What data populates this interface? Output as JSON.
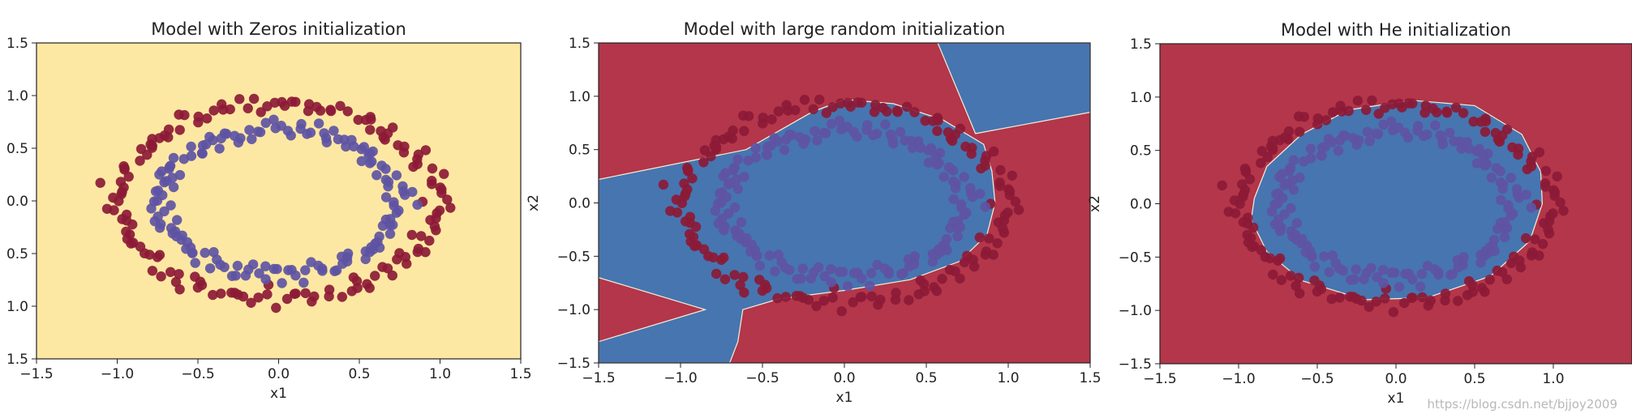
{
  "watermark": "https://blog.csdn.net/bjjoy2009",
  "colors": {
    "red_region": "#b3364a",
    "blue_region": "#4775b0",
    "yellow_region": "#fde8a3",
    "red_point": "#8c1a36",
    "blue_point": "#5e54a3"
  },
  "chart_data": [
    {
      "type": "scatter",
      "title": "Model with Zeros initialization",
      "xlabel": "x1",
      "ylabel": "",
      "xlim": [
        -1.5,
        1.5
      ],
      "ylim": [
        -1.5,
        1.5
      ],
      "xticks": [
        "−1.5",
        "−1.0",
        "−0.5",
        "0.0",
        "0.5",
        "1.0",
        "1.5"
      ],
      "yticks": [
        "1.5",
        "1.0",
        "0.5",
        "0.0",
        "0.5",
        "1.0",
        "1.5"
      ],
      "grid": false,
      "background": "yellow_region",
      "series": [
        {
          "color": "red_point",
          "shape": "circle",
          "radius": 1.0
        },
        {
          "color": "blue_point",
          "shape": "circle",
          "radius": 0.75
        }
      ]
    },
    {
      "type": "scatter",
      "title": "Model with large random initialization",
      "xlabel": "x1",
      "ylabel": "x2",
      "xlim": [
        -1.5,
        1.5
      ],
      "ylim": [
        -1.5,
        1.5
      ],
      "xticks": [
        "−1.5",
        "−1.0",
        "−0.5",
        "0.0",
        "0.5",
        "1.0",
        "1.5"
      ],
      "yticks": [
        "1.5",
        "1.0",
        "0.5",
        "0.0",
        "−0.5",
        "−1.0",
        "−1.5"
      ],
      "grid": false,
      "background": "red_region",
      "decision_regions": [
        {
          "color": "blue_region",
          "polygon": [
            [
              -1.5,
              0.22
            ],
            [
              -0.6,
              0.5
            ],
            [
              -0.2,
              0.85
            ],
            [
              0.0,
              0.97
            ],
            [
              0.3,
              0.93
            ],
            [
              0.6,
              0.78
            ],
            [
              0.85,
              0.55
            ],
            [
              0.9,
              0.3
            ],
            [
              0.92,
              0.0
            ],
            [
              0.87,
              -0.3
            ],
            [
              0.7,
              -0.55
            ],
            [
              0.4,
              -0.72
            ],
            [
              0.0,
              -0.82
            ],
            [
              -0.4,
              -0.9
            ],
            [
              -0.62,
              -1.0
            ],
            [
              -0.65,
              -1.3
            ],
            [
              -0.7,
              -1.5
            ],
            [
              -1.5,
              -1.5
            ],
            [
              -1.5,
              -1.3
            ],
            [
              -0.85,
              -1.0
            ],
            [
              -1.5,
              -0.7
            ]
          ]
        },
        {
          "color": "blue_region",
          "polygon": [
            [
              0.57,
              1.5
            ],
            [
              1.5,
              1.5
            ],
            [
              1.5,
              0.85
            ],
            [
              0.8,
              0.65
            ]
          ]
        }
      ],
      "series": [
        {
          "color": "red_point",
          "shape": "circle",
          "radius": 1.0
        },
        {
          "color": "blue_point",
          "shape": "circle",
          "radius": 0.75
        }
      ]
    },
    {
      "type": "scatter",
      "title": "Model with He initialization",
      "xlabel": "x1",
      "ylabel": "x2",
      "xlim": [
        -1.5,
        1.5
      ],
      "ylim": [
        -1.5,
        1.5
      ],
      "xticks": [
        "−1.5",
        "−1.0",
        "−0.5",
        "0.0",
        "0.5",
        "1.0"
      ],
      "yticks": [
        "1.5",
        "1.0",
        "0.5",
        "0.0",
        "−0.5",
        "−1.0",
        "−1.5"
      ],
      "grid": false,
      "background": "red_region",
      "decision_regions": [
        {
          "color": "blue_region",
          "polygon": [
            [
              -0.9,
              0.05
            ],
            [
              -0.82,
              0.35
            ],
            [
              -0.6,
              0.65
            ],
            [
              -0.3,
              0.88
            ],
            [
              0.1,
              0.97
            ],
            [
              0.5,
              0.92
            ],
            [
              0.8,
              0.65
            ],
            [
              0.92,
              0.3
            ],
            [
              0.93,
              0.0
            ],
            [
              0.85,
              -0.35
            ],
            [
              0.6,
              -0.68
            ],
            [
              0.2,
              -0.88
            ],
            [
              -0.2,
              -0.9
            ],
            [
              -0.6,
              -0.72
            ],
            [
              -0.82,
              -0.45
            ],
            [
              -0.92,
              -0.15
            ]
          ]
        }
      ],
      "series": [
        {
          "color": "red_point",
          "shape": "circle",
          "radius": 1.0
        },
        {
          "color": "blue_point",
          "shape": "circle",
          "radius": 0.75
        }
      ]
    }
  ]
}
